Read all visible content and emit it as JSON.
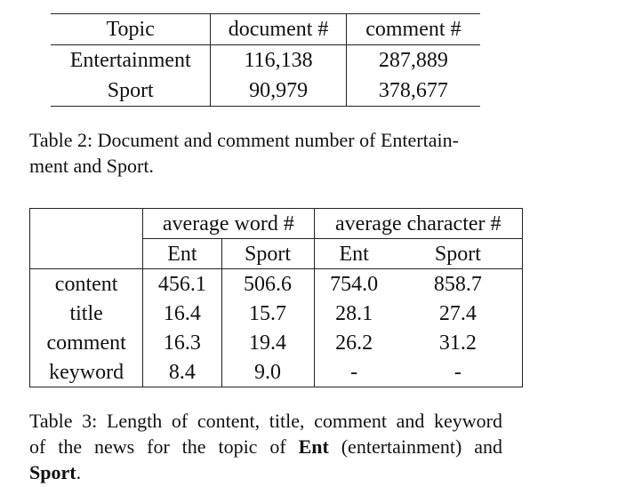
{
  "table2": {
    "headers": [
      "Topic",
      "document #",
      "comment #"
    ],
    "rows": [
      [
        "Entertainment",
        "116,138",
        "287,889"
      ],
      [
        "Sport",
        "90,979",
        "378,677"
      ]
    ]
  },
  "caption2": {
    "line1": "Table 2: Document and comment number of Entertain-",
    "line2": "ment and Sport."
  },
  "table3": {
    "group_headers": [
      "average word #",
      "average character #"
    ],
    "sub_headers": [
      "Ent",
      "Sport",
      "Ent",
      "Sport"
    ],
    "rows": [
      {
        "label": "content",
        "values": [
          "456.1",
          "506.6",
          "754.0",
          "858.7"
        ]
      },
      {
        "label": "title",
        "values": [
          "16.4",
          "15.7",
          "28.1",
          "27.4"
        ]
      },
      {
        "label": "comment",
        "values": [
          "16.3",
          "19.4",
          "26.2",
          "31.2"
        ]
      },
      {
        "label": "keyword",
        "values": [
          "8.4",
          "9.0",
          "-",
          "-"
        ]
      }
    ]
  },
  "caption3": {
    "line1": "Table 3: Length of content, title, comment and keyword",
    "line2_pre": "of the news for the topic of",
    "line2_bold": "Ent",
    "line2_post": "(entertainment) and",
    "line3_bold": "Sport",
    "line3_post": "."
  }
}
